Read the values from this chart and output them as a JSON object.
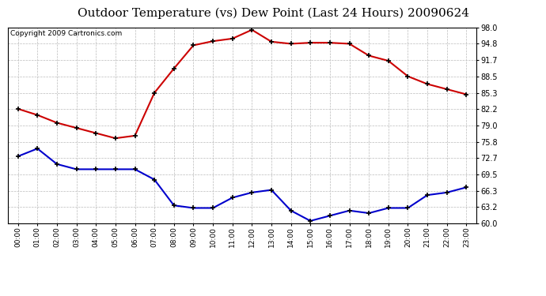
{
  "title": "Outdoor Temperature (vs) Dew Point (Last 24 Hours) 20090624",
  "copyright": "Copyright 2009 Cartronics.com",
  "hours": [
    "00:00",
    "01:00",
    "02:00",
    "03:00",
    "04:00",
    "05:00",
    "06:00",
    "07:00",
    "08:00",
    "09:00",
    "10:00",
    "11:00",
    "12:00",
    "13:00",
    "14:00",
    "15:00",
    "16:00",
    "17:00",
    "18:00",
    "19:00",
    "20:00",
    "21:00",
    "22:00",
    "23:00"
  ],
  "temp": [
    82.2,
    81.0,
    79.5,
    78.5,
    77.5,
    76.5,
    77.0,
    85.3,
    90.0,
    94.5,
    95.3,
    95.8,
    97.5,
    95.2,
    94.8,
    95.0,
    95.0,
    94.8,
    92.5,
    91.5,
    88.5,
    87.0,
    86.0,
    85.0
  ],
  "dew": [
    73.0,
    74.5,
    71.5,
    70.5,
    70.5,
    70.5,
    70.5,
    68.5,
    63.5,
    63.0,
    63.0,
    65.0,
    66.0,
    66.5,
    62.5,
    60.5,
    61.5,
    62.5,
    62.0,
    63.0,
    63.0,
    65.5,
    66.0,
    67.0
  ],
  "temp_color": "#cc0000",
  "dew_color": "#0000cc",
  "bg_color": "#ffffff",
  "plot_bg_color": "#ffffff",
  "grid_color": "#bbbbbb",
  "marker": "+",
  "marker_color": "#000000",
  "ylim": [
    60.0,
    98.0
  ],
  "yticks": [
    60.0,
    63.2,
    66.3,
    69.5,
    72.7,
    75.8,
    79.0,
    82.2,
    85.3,
    88.5,
    91.7,
    94.8,
    98.0
  ],
  "title_fontsize": 11,
  "copyright_fontsize": 6.5
}
